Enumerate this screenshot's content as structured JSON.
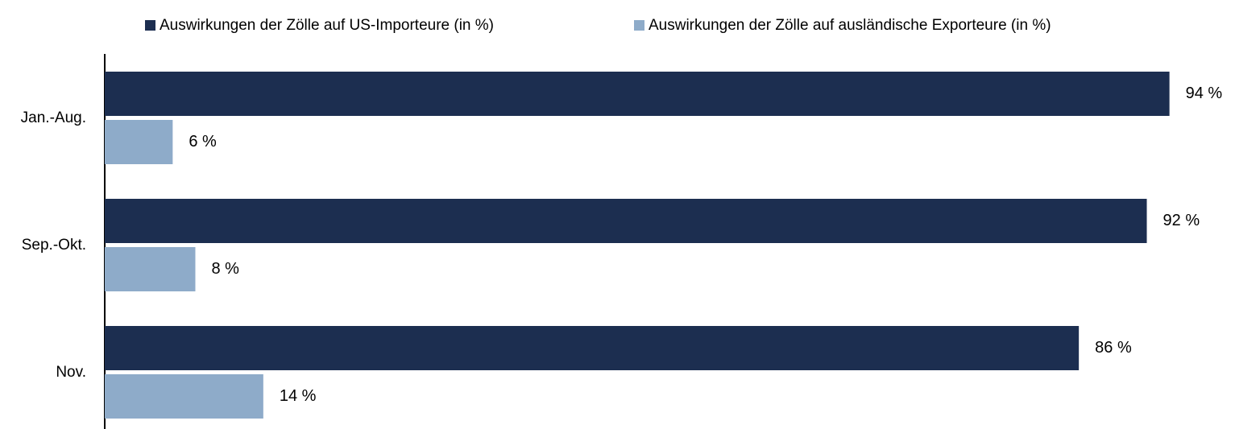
{
  "chart_data": {
    "type": "bar",
    "orientation": "horizontal",
    "categories": [
      "Jan.-Aug.",
      "Sep.-Okt.",
      "Nov."
    ],
    "series": [
      {
        "name": "Auswirkungen der Zölle auf US-Importeure (in %)",
        "color": "#1c2e50",
        "values": [
          94,
          92,
          86
        ],
        "value_labels": [
          "94 %",
          "92 %",
          "86 %"
        ]
      },
      {
        "name": "Auswirkungen der Zölle auf ausländische Exporteure (in %)",
        "color": "#8eabc9",
        "values": [
          6,
          8,
          14
        ],
        "value_labels": [
          "6 %",
          "8 %",
          "14 %"
        ]
      }
    ],
    "xlim": [
      0,
      100
    ],
    "grid": false,
    "legend": "top"
  }
}
